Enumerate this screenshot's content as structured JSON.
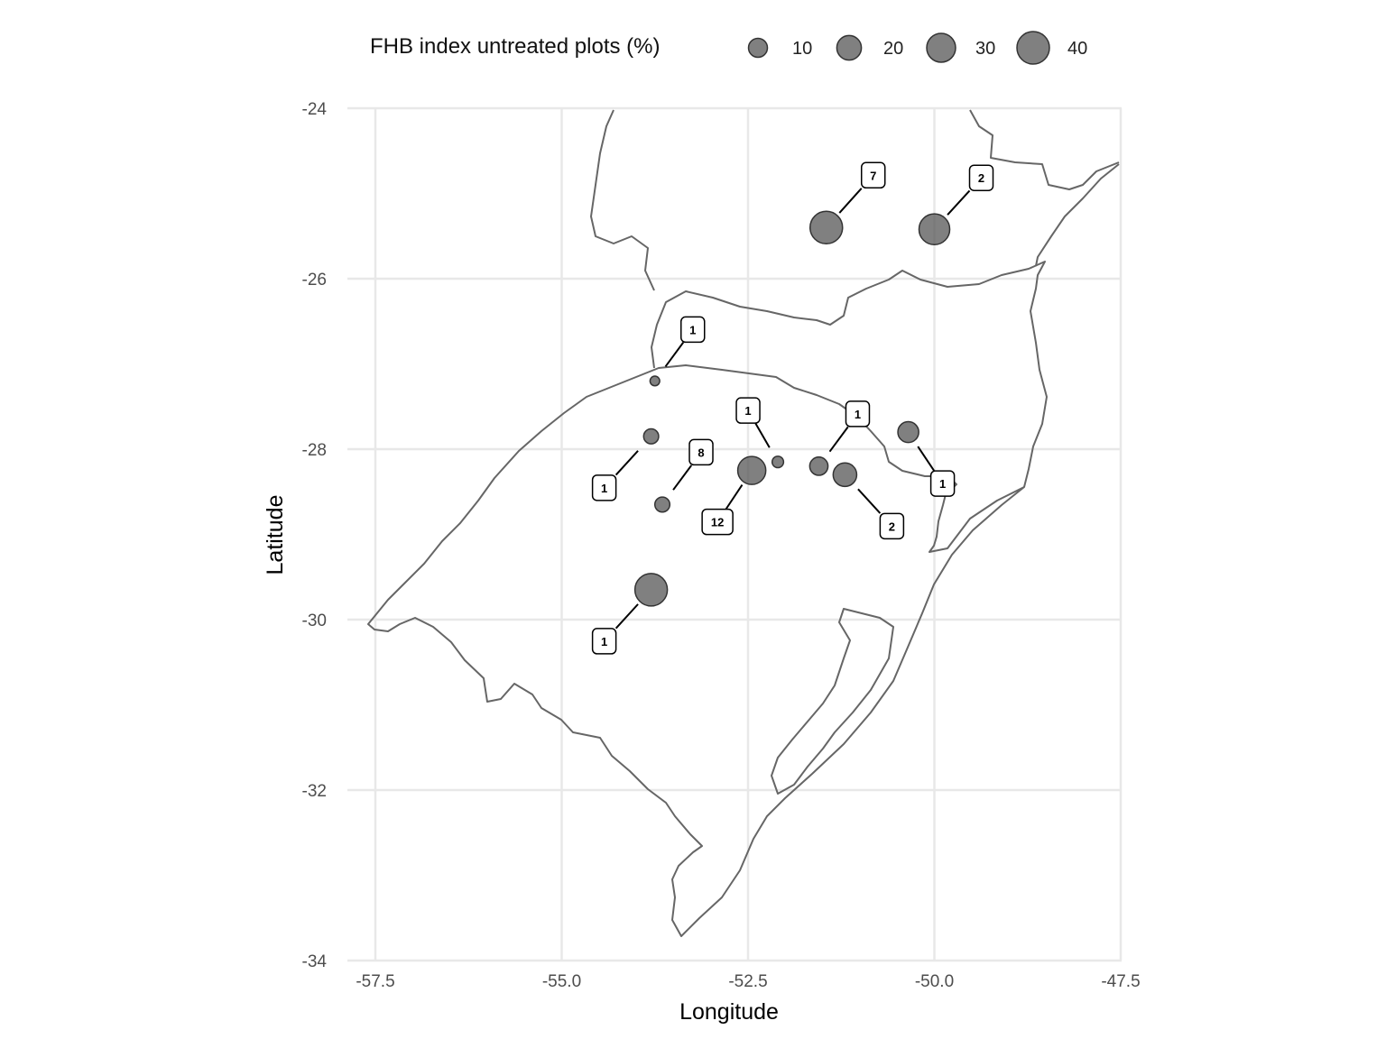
{
  "legend": {
    "title": "FHB index untreated plots (%)",
    "items": [
      {
        "label": "10",
        "value": 10
      },
      {
        "label": "20",
        "value": 20
      },
      {
        "label": "30",
        "value": 30
      },
      {
        "label": "40",
        "value": 40
      }
    ]
  },
  "axes": {
    "xlabel": "Longitude",
    "ylabel": "Latitude",
    "xlim": [
      -58.0,
      -47.5
    ],
    "ylim": [
      -34.0,
      -24.0
    ],
    "xticks": [
      {
        "value": -57.5,
        "label": "-57.5"
      },
      {
        "value": -55.0,
        "label": "-55.0"
      },
      {
        "value": -52.5,
        "label": "-52.5"
      },
      {
        "value": -50.0,
        "label": "-50.0"
      },
      {
        "value": -47.5,
        "label": "-47.5"
      }
    ],
    "yticks": [
      {
        "value": -24,
        "label": "-24"
      },
      {
        "value": -26,
        "label": "-26"
      },
      {
        "value": -28,
        "label": "-28"
      },
      {
        "value": -30,
        "label": "-30"
      },
      {
        "value": -32,
        "label": "-32"
      },
      {
        "value": -34,
        "label": "-34"
      }
    ]
  },
  "colors": {
    "point": "#555555",
    "border": "#666666",
    "grid": "#e8e8e8"
  },
  "chart_data": {
    "type": "scatter",
    "grid": true,
    "legend_position": "top",
    "points": [
      {
        "lon": -51.45,
        "lat": -25.4,
        "fhb": 40,
        "count": "7"
      },
      {
        "lon": -50.0,
        "lat": -25.42,
        "fhb": 35,
        "count": "2"
      },
      {
        "lon": -53.75,
        "lat": -27.2,
        "fhb": 1,
        "count": "1"
      },
      {
        "lon": -52.1,
        "lat": -28.15,
        "fhb": 2,
        "count": "1"
      },
      {
        "lon": -51.55,
        "lat": -28.2,
        "fhb": 9,
        "count": "1"
      },
      {
        "lon": -50.35,
        "lat": -27.8,
        "fhb": 13,
        "count": "1"
      },
      {
        "lon": -53.8,
        "lat": -27.85,
        "fhb": 5,
        "count": "1"
      },
      {
        "lon": -53.65,
        "lat": -28.65,
        "fhb": 5,
        "count": "8"
      },
      {
        "lon": -52.45,
        "lat": -28.25,
        "fhb": 28,
        "count": "12"
      },
      {
        "lon": -51.2,
        "lat": -28.3,
        "fhb": 18,
        "count": "2"
      },
      {
        "lon": -53.8,
        "lat": -29.65,
        "fhb": 40,
        "count": "1"
      }
    ]
  }
}
